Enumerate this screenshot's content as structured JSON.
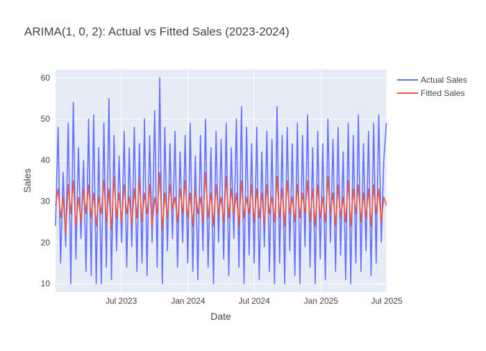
{
  "chart_data": {
    "type": "line",
    "title": "ARIMA(1, 0, 2): Actual vs Fitted Sales (2023-2024)",
    "xlabel": "Date",
    "ylabel": "Sales",
    "x_start": "2023-01-01",
    "x_end": "2025-07-01",
    "x_ticks": [
      "2023-07-01",
      "2024-01-01",
      "2024-07-01",
      "2025-01-01",
      "2025-07-01"
    ],
    "x_tick_labels": [
      "Jul 2023",
      "Jan 2024",
      "Jul 2024",
      "Jan 2025",
      "Jul 2025"
    ],
    "ylim": [
      8,
      62
    ],
    "y_ticks": [
      10,
      20,
      30,
      40,
      50,
      60
    ],
    "grid": true,
    "legend_position": "top-right",
    "series": [
      {
        "name": "Actual Sales",
        "color": "#636efa",
        "points": [
          [
            "2023-01-01",
            24
          ],
          [
            "2023-01-08",
            48
          ],
          [
            "2023-01-15",
            15
          ],
          [
            "2023-01-22",
            37
          ],
          [
            "2023-01-29",
            19
          ],
          [
            "2023-02-05",
            49
          ],
          [
            "2023-02-12",
            10
          ],
          [
            "2023-02-19",
            54
          ],
          [
            "2023-02-26",
            16
          ],
          [
            "2023-03-05",
            43
          ],
          [
            "2023-03-12",
            21
          ],
          [
            "2023-03-19",
            40
          ],
          [
            "2023-03-26",
            13
          ],
          [
            "2023-04-02",
            50
          ],
          [
            "2023-04-09",
            12
          ],
          [
            "2023-04-16",
            51
          ],
          [
            "2023-04-23",
            10
          ],
          [
            "2023-04-30",
            43
          ],
          [
            "2023-05-07",
            10
          ],
          [
            "2023-05-14",
            49
          ],
          [
            "2023-05-21",
            14
          ],
          [
            "2023-05-28",
            55
          ],
          [
            "2023-06-04",
            11
          ],
          [
            "2023-06-11",
            46
          ],
          [
            "2023-06-18",
            18
          ],
          [
            "2023-06-25",
            41
          ],
          [
            "2023-07-02",
            20
          ],
          [
            "2023-07-09",
            47
          ],
          [
            "2023-07-16",
            14
          ],
          [
            "2023-07-23",
            43
          ],
          [
            "2023-07-30",
            19
          ],
          [
            "2023-08-06",
            48
          ],
          [
            "2023-08-13",
            13
          ],
          [
            "2023-08-20",
            44
          ],
          [
            "2023-08-27",
            15
          ],
          [
            "2023-09-03",
            50
          ],
          [
            "2023-09-10",
            12
          ],
          [
            "2023-09-17",
            46
          ],
          [
            "2023-09-24",
            20
          ],
          [
            "2023-10-01",
            52
          ],
          [
            "2023-10-08",
            14
          ],
          [
            "2023-10-15",
            60
          ],
          [
            "2023-10-22",
            10
          ],
          [
            "2023-10-29",
            48
          ],
          [
            "2023-11-05",
            18
          ],
          [
            "2023-11-12",
            44
          ],
          [
            "2023-11-19",
            21
          ],
          [
            "2023-11-26",
            47
          ],
          [
            "2023-12-03",
            14
          ],
          [
            "2023-12-10",
            42
          ],
          [
            "2023-12-17",
            20
          ],
          [
            "2023-12-24",
            46
          ],
          [
            "2023-12-31",
            15
          ],
          [
            "2024-01-07",
            49
          ],
          [
            "2024-01-14",
            13
          ],
          [
            "2024-01-21",
            41
          ],
          [
            "2024-01-28",
            11
          ],
          [
            "2024-02-04",
            46
          ],
          [
            "2024-02-11",
            18
          ],
          [
            "2024-02-18",
            50
          ],
          [
            "2024-02-25",
            14
          ],
          [
            "2024-03-04",
            43
          ],
          [
            "2024-03-11",
            10
          ],
          [
            "2024-03-18",
            47
          ],
          [
            "2024-03-25",
            20
          ],
          [
            "2024-04-01",
            45
          ],
          [
            "2024-04-08",
            16
          ],
          [
            "2024-04-15",
            49
          ],
          [
            "2024-04-22",
            12
          ],
          [
            "2024-04-29",
            43
          ],
          [
            "2024-05-06",
            21
          ],
          [
            "2024-05-13",
            50
          ],
          [
            "2024-05-20",
            14
          ],
          [
            "2024-05-27",
            53
          ],
          [
            "2024-06-03",
            10
          ],
          [
            "2024-06-10",
            48
          ],
          [
            "2024-06-17",
            17
          ],
          [
            "2024-06-24",
            44
          ],
          [
            "2024-07-01",
            15
          ],
          [
            "2024-07-08",
            48
          ],
          [
            "2024-07-15",
            11
          ],
          [
            "2024-07-22",
            42
          ],
          [
            "2024-07-29",
            19
          ],
          [
            "2024-08-05",
            47
          ],
          [
            "2024-08-12",
            13
          ],
          [
            "2024-08-19",
            45
          ],
          [
            "2024-08-26",
            10
          ],
          [
            "2024-09-02",
            53
          ],
          [
            "2024-09-09",
            15
          ],
          [
            "2024-09-16",
            46
          ],
          [
            "2024-09-23",
            10
          ],
          [
            "2024-09-30",
            48
          ],
          [
            "2024-10-07",
            18
          ],
          [
            "2024-10-14",
            44
          ],
          [
            "2024-10-21",
            12
          ],
          [
            "2024-10-28",
            49
          ],
          [
            "2024-11-04",
            10
          ],
          [
            "2024-11-11",
            46
          ],
          [
            "2024-11-18",
            19
          ],
          [
            "2024-11-25",
            51
          ],
          [
            "2024-12-02",
            14
          ],
          [
            "2024-12-09",
            43
          ],
          [
            "2024-12-16",
            10
          ],
          [
            "2024-12-23",
            47
          ],
          [
            "2024-12-30",
            16
          ],
          [
            "2025-01-06",
            44
          ],
          [
            "2025-01-13",
            11
          ],
          [
            "2025-01-20",
            50
          ],
          [
            "2025-01-27",
            20
          ],
          [
            "2025-02-03",
            45
          ],
          [
            "2025-02-10",
            13
          ],
          [
            "2025-02-17",
            48
          ],
          [
            "2025-02-24",
            17
          ],
          [
            "2025-03-03",
            42
          ],
          [
            "2025-03-10",
            11
          ],
          [
            "2025-03-17",
            49
          ],
          [
            "2025-03-24",
            10
          ],
          [
            "2025-03-31",
            46
          ],
          [
            "2025-04-07",
            15
          ],
          [
            "2025-04-14",
            51
          ],
          [
            "2025-04-21",
            13
          ],
          [
            "2025-04-28",
            44
          ],
          [
            "2025-05-05",
            18
          ],
          [
            "2025-05-12",
            47
          ],
          [
            "2025-05-19",
            12
          ],
          [
            "2025-05-26",
            49
          ],
          [
            "2025-06-02",
            15
          ],
          [
            "2025-06-09",
            51
          ],
          [
            "2025-06-16",
            20
          ],
          [
            "2025-06-23",
            40
          ],
          [
            "2025-06-30",
            49
          ]
        ]
      },
      {
        "name": "Fitted Sales",
        "color": "#ef553b",
        "points": [
          [
            "2023-01-01",
            29
          ],
          [
            "2023-01-08",
            33
          ],
          [
            "2023-01-15",
            26
          ],
          [
            "2023-01-22",
            31
          ],
          [
            "2023-01-29",
            22
          ],
          [
            "2023-02-05",
            34
          ],
          [
            "2023-02-12",
            27
          ],
          [
            "2023-02-19",
            35
          ],
          [
            "2023-02-26",
            24
          ],
          [
            "2023-03-05",
            31
          ],
          [
            "2023-03-12",
            25
          ],
          [
            "2023-03-19",
            33
          ],
          [
            "2023-03-26",
            27
          ],
          [
            "2023-04-02",
            34
          ],
          [
            "2023-04-09",
            26
          ],
          [
            "2023-04-16",
            32
          ],
          [
            "2023-04-23",
            24
          ],
          [
            "2023-04-30",
            31
          ],
          [
            "2023-05-07",
            27
          ],
          [
            "2023-05-14",
            35
          ],
          [
            "2023-05-21",
            25
          ],
          [
            "2023-05-28",
            33
          ],
          [
            "2023-06-04",
            23
          ],
          [
            "2023-06-11",
            36
          ],
          [
            "2023-06-18",
            26
          ],
          [
            "2023-06-25",
            32
          ],
          [
            "2023-07-02",
            25
          ],
          [
            "2023-07-09",
            34
          ],
          [
            "2023-07-16",
            27
          ],
          [
            "2023-07-23",
            31
          ],
          [
            "2023-07-30",
            24
          ],
          [
            "2023-08-06",
            33
          ],
          [
            "2023-08-13",
            26
          ],
          [
            "2023-08-20",
            35
          ],
          [
            "2023-08-27",
            25
          ],
          [
            "2023-09-03",
            32
          ],
          [
            "2023-09-10",
            27
          ],
          [
            "2023-09-17",
            34
          ],
          [
            "2023-09-24",
            24
          ],
          [
            "2023-10-01",
            31
          ],
          [
            "2023-10-08",
            27
          ],
          [
            "2023-10-15",
            37
          ],
          [
            "2023-10-22",
            23
          ],
          [
            "2023-10-29",
            32
          ],
          [
            "2023-11-05",
            26
          ],
          [
            "2023-11-12",
            34
          ],
          [
            "2023-11-19",
            28
          ],
          [
            "2023-11-26",
            31
          ],
          [
            "2023-12-03",
            25
          ],
          [
            "2023-12-10",
            33
          ],
          [
            "2023-12-17",
            27
          ],
          [
            "2023-12-24",
            35
          ],
          [
            "2023-12-31",
            26
          ],
          [
            "2024-01-07",
            32
          ],
          [
            "2024-01-14",
            24
          ],
          [
            "2024-01-21",
            33
          ],
          [
            "2024-01-28",
            27
          ],
          [
            "2024-02-04",
            31
          ],
          [
            "2024-02-11",
            25
          ],
          [
            "2024-02-18",
            37
          ],
          [
            "2024-02-25",
            26
          ],
          [
            "2024-03-04",
            32
          ],
          [
            "2024-03-11",
            24
          ],
          [
            "2024-03-18",
            34
          ],
          [
            "2024-03-25",
            27
          ],
          [
            "2024-04-01",
            31
          ],
          [
            "2024-04-08",
            25
          ],
          [
            "2024-04-15",
            36
          ],
          [
            "2024-04-22",
            26
          ],
          [
            "2024-04-29",
            33
          ],
          [
            "2024-05-06",
            27
          ],
          [
            "2024-05-13",
            32
          ],
          [
            "2024-05-20",
            24
          ],
          [
            "2024-05-27",
            35
          ],
          [
            "2024-06-03",
            26
          ],
          [
            "2024-06-10",
            31
          ],
          [
            "2024-06-17",
            27
          ],
          [
            "2024-06-24",
            34
          ],
          [
            "2024-07-01",
            25
          ],
          [
            "2024-07-08",
            33
          ],
          [
            "2024-07-15",
            26
          ],
          [
            "2024-07-22",
            32
          ],
          [
            "2024-07-29",
            24
          ],
          [
            "2024-08-05",
            34
          ],
          [
            "2024-08-12",
            27
          ],
          [
            "2024-08-19",
            31
          ],
          [
            "2024-08-26",
            25
          ],
          [
            "2024-09-02",
            36
          ],
          [
            "2024-09-09",
            26
          ],
          [
            "2024-09-16",
            33
          ],
          [
            "2024-09-23",
            24
          ],
          [
            "2024-09-30",
            35
          ],
          [
            "2024-10-07",
            27
          ],
          [
            "2024-10-14",
            31
          ],
          [
            "2024-10-21",
            25
          ],
          [
            "2024-10-28",
            34
          ],
          [
            "2024-11-04",
            26
          ],
          [
            "2024-11-11",
            32
          ],
          [
            "2024-11-18",
            27
          ],
          [
            "2024-11-25",
            35
          ],
          [
            "2024-12-02",
            25
          ],
          [
            "2024-12-09",
            33
          ],
          [
            "2024-12-16",
            24
          ],
          [
            "2024-12-23",
            34
          ],
          [
            "2024-12-30",
            26
          ],
          [
            "2025-01-06",
            31
          ],
          [
            "2025-01-13",
            25
          ],
          [
            "2025-01-20",
            36
          ],
          [
            "2025-01-27",
            27
          ],
          [
            "2025-02-03",
            32
          ],
          [
            "2025-02-10",
            24
          ],
          [
            "2025-02-17",
            34
          ],
          [
            "2025-02-24",
            26
          ],
          [
            "2025-03-03",
            31
          ],
          [
            "2025-03-10",
            25
          ],
          [
            "2025-03-17",
            35
          ],
          [
            "2025-03-24",
            24
          ],
          [
            "2025-03-31",
            33
          ],
          [
            "2025-04-07",
            27
          ],
          [
            "2025-04-14",
            34
          ],
          [
            "2025-04-21",
            25
          ],
          [
            "2025-04-28",
            32
          ],
          [
            "2025-05-05",
            26
          ],
          [
            "2025-05-12",
            33
          ],
          [
            "2025-05-19",
            24
          ],
          [
            "2025-05-26",
            34
          ],
          [
            "2025-06-02",
            27
          ],
          [
            "2025-06-09",
            33
          ],
          [
            "2025-06-16",
            25
          ],
          [
            "2025-06-23",
            31
          ],
          [
            "2025-06-30",
            29
          ]
        ]
      }
    ]
  }
}
